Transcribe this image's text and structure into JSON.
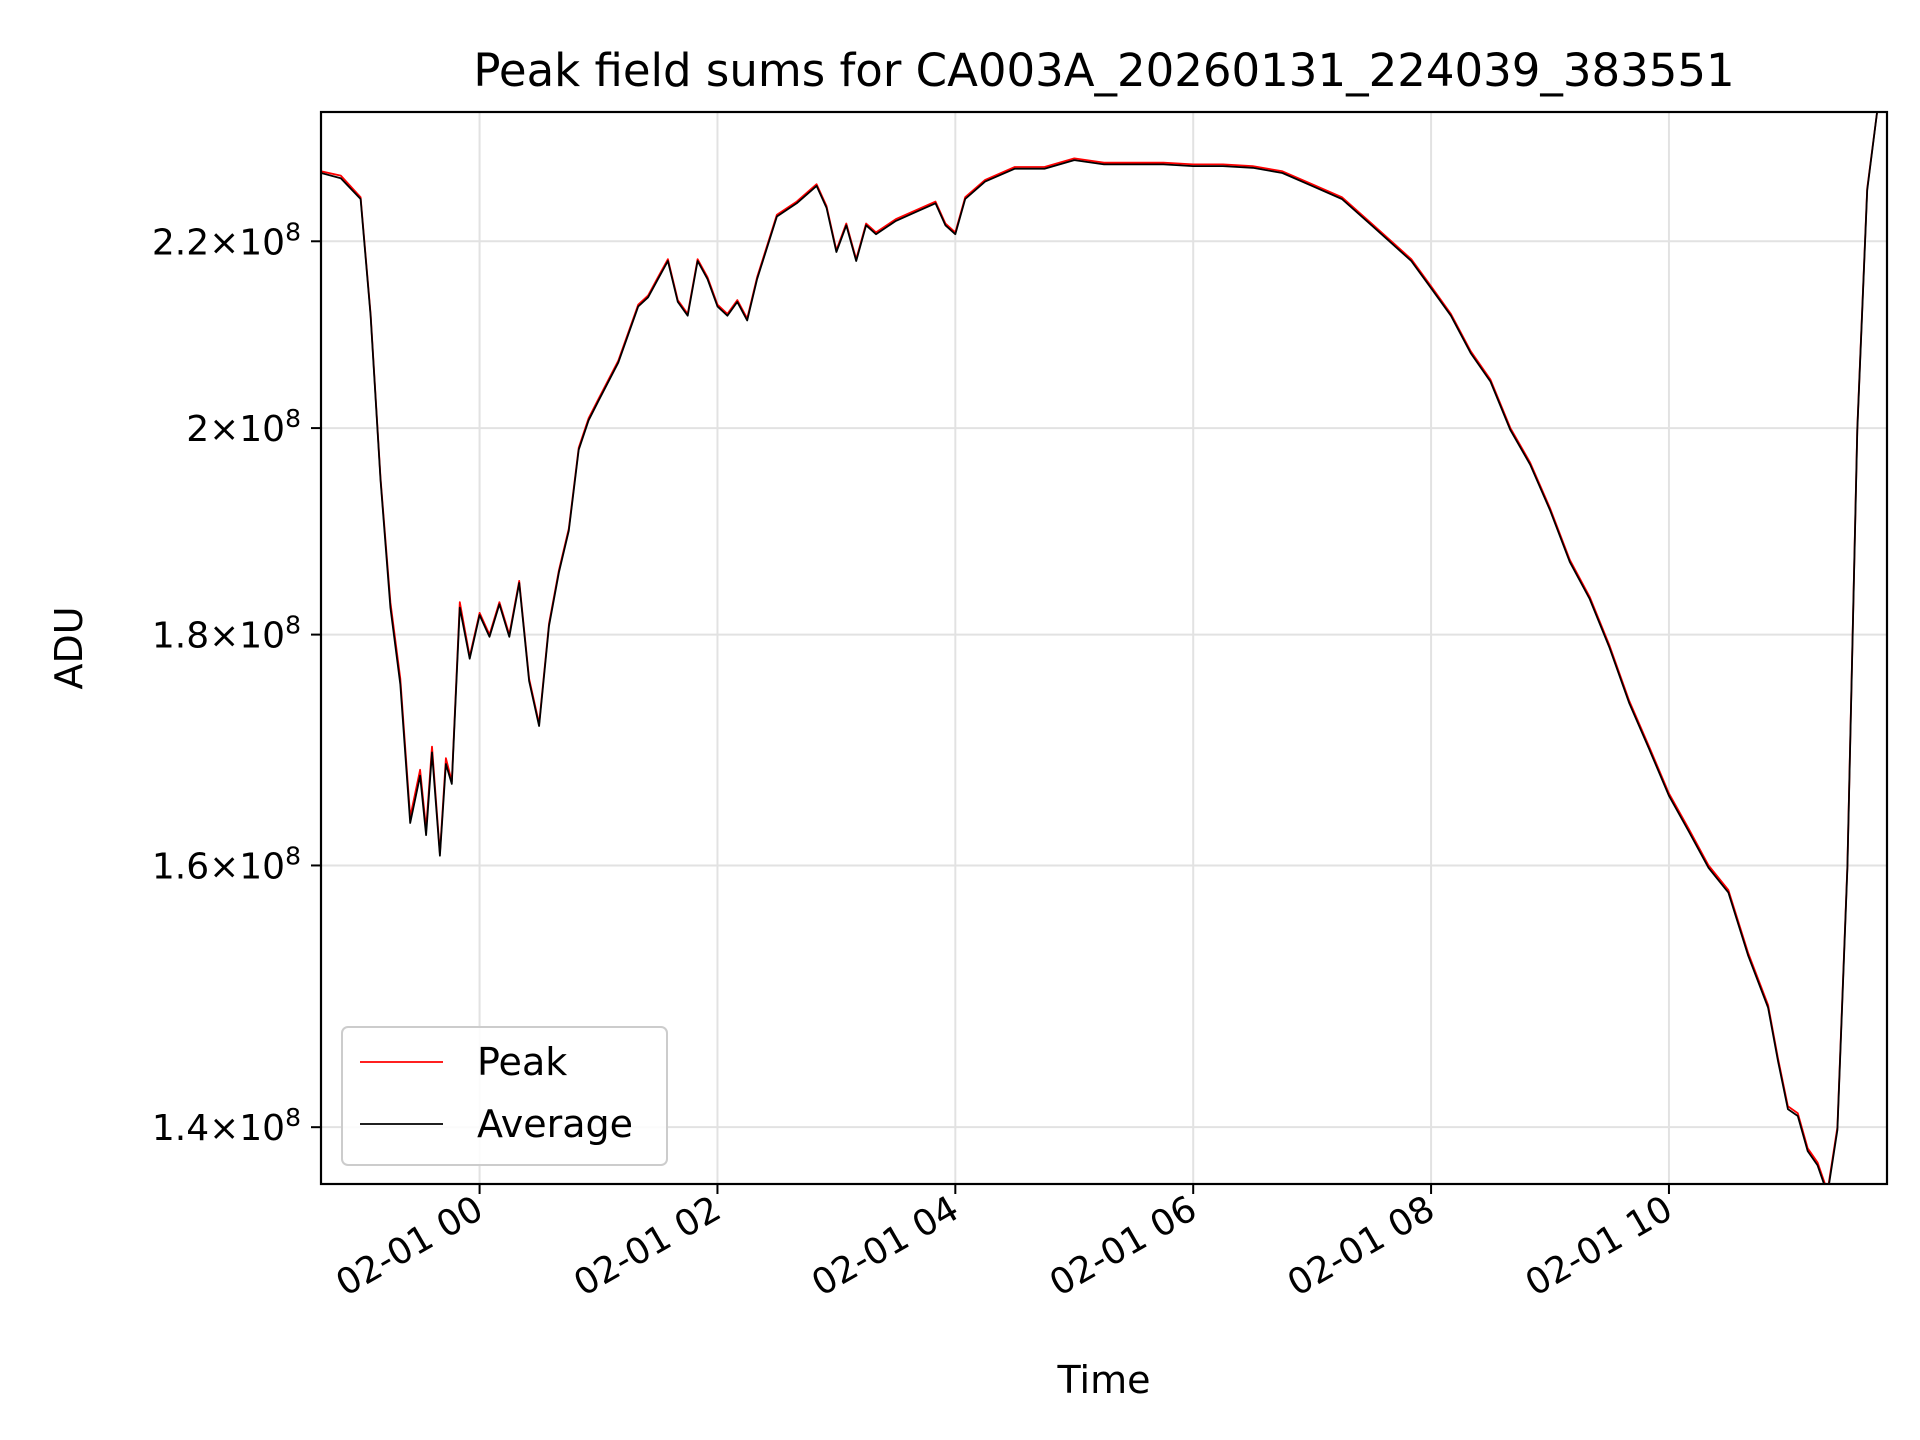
{
  "chart_data": {
    "type": "line",
    "title": "Peak field sums for CA003A_20260131_224039_383551",
    "xlabel": "Time",
    "ylabel": "ADU",
    "y_scale": "log",
    "ylim": [
      136000000,
      235000000
    ],
    "xlim": [
      "2026-01-31 22:40",
      "2026-02-01 11:50"
    ],
    "grid": true,
    "legend_position": "lower-left",
    "x_ticks": [
      {
        "t": "2026-02-01 00:00",
        "label": "02-01 00"
      },
      {
        "t": "2026-02-01 02:00",
        "label": "02-01 02"
      },
      {
        "t": "2026-02-01 04:00",
        "label": "02-01 04"
      },
      {
        "t": "2026-02-01 06:00",
        "label": "02-01 06"
      },
      {
        "t": "2026-02-01 08:00",
        "label": "02-01 08"
      },
      {
        "t": "2026-02-01 10:00",
        "label": "02-01 10"
      }
    ],
    "y_ticks": [
      {
        "value": 140000000,
        "mantissa": "1.4",
        "base": "10",
        "exp": "8"
      },
      {
        "value": 160000000,
        "mantissa": "1.6",
        "base": "10",
        "exp": "8"
      },
      {
        "value": 180000000,
        "mantissa": "1.8",
        "base": "10",
        "exp": "8"
      },
      {
        "value": 200000000,
        "mantissa": "2",
        "base": "10",
        "exp": "8"
      },
      {
        "value": 220000000,
        "mantissa": "2.2",
        "base": "10",
        "exp": "8"
      }
    ],
    "series": [
      {
        "name": "Peak",
        "color": "#ff0000",
        "x": [
          "2026-01-31 22:40",
          "2026-01-31 22:50",
          "2026-01-31 23:00",
          "2026-01-31 23:05",
          "2026-01-31 23:10",
          "2026-01-31 23:15",
          "2026-01-31 23:20",
          "2026-01-31 23:25",
          "2026-01-31 23:30",
          "2026-01-31 23:33",
          "2026-01-31 23:36",
          "2026-01-31 23:40",
          "2026-01-31 23:43",
          "2026-01-31 23:46",
          "2026-01-31 23:50",
          "2026-01-31 23:55",
          "2026-02-01 00:00",
          "2026-02-01 00:05",
          "2026-02-01 00:10",
          "2026-02-01 00:15",
          "2026-02-01 00:20",
          "2026-02-01 00:25",
          "2026-02-01 00:30",
          "2026-02-01 00:35",
          "2026-02-01 00:40",
          "2026-02-01 00:45",
          "2026-02-01 00:50",
          "2026-02-01 00:55",
          "2026-02-01 01:00",
          "2026-02-01 01:10",
          "2026-02-01 01:20",
          "2026-02-01 01:25",
          "2026-02-01 01:30",
          "2026-02-01 01:35",
          "2026-02-01 01:40",
          "2026-02-01 01:45",
          "2026-02-01 01:50",
          "2026-02-01 01:55",
          "2026-02-01 02:00",
          "2026-02-01 02:05",
          "2026-02-01 02:10",
          "2026-02-01 02:15",
          "2026-02-01 02:20",
          "2026-02-01 02:30",
          "2026-02-01 02:40",
          "2026-02-01 02:50",
          "2026-02-01 02:55",
          "2026-02-01 03:00",
          "2026-02-01 03:05",
          "2026-02-01 03:10",
          "2026-02-01 03:15",
          "2026-02-01 03:20",
          "2026-02-01 03:30",
          "2026-02-01 03:40",
          "2026-02-01 03:50",
          "2026-02-01 03:55",
          "2026-02-01 04:00",
          "2026-02-01 04:05",
          "2026-02-01 04:15",
          "2026-02-01 04:30",
          "2026-02-01 04:45",
          "2026-02-01 05:00",
          "2026-02-01 05:15",
          "2026-02-01 05:30",
          "2026-02-01 05:45",
          "2026-02-01 06:00",
          "2026-02-01 06:15",
          "2026-02-01 06:30",
          "2026-02-01 06:45",
          "2026-02-01 07:00",
          "2026-02-01 07:15",
          "2026-02-01 07:30",
          "2026-02-01 07:40",
          "2026-02-01 07:50",
          "2026-02-01 08:00",
          "2026-02-01 08:10",
          "2026-02-01 08:20",
          "2026-02-01 08:30",
          "2026-02-01 08:40",
          "2026-02-01 08:50",
          "2026-02-01 09:00",
          "2026-02-01 09:10",
          "2026-02-01 09:20",
          "2026-02-01 09:30",
          "2026-02-01 09:40",
          "2026-02-01 09:50",
          "2026-02-01 10:00",
          "2026-02-01 10:10",
          "2026-02-01 10:20",
          "2026-02-01 10:30",
          "2026-02-01 10:40",
          "2026-02-01 10:50",
          "2026-02-01 10:55",
          "2026-02-01 11:00",
          "2026-02-01 11:05",
          "2026-02-01 11:10",
          "2026-02-01 11:15",
          "2026-02-01 11:20",
          "2026-02-01 11:25",
          "2026-02-01 11:30",
          "2026-02-01 11:35",
          "2026-02-01 11:40",
          "2026-02-01 11:45",
          "2026-02-01 11:48"
        ],
        "y": [
          228000000,
          227500000,
          225000000,
          212000000,
          195000000,
          183000000,
          176000000,
          164000000,
          168000000,
          163000000,
          170000000,
          161000000,
          169000000,
          167000000,
          183000000,
          178000000,
          182000000,
          180000000,
          183000000,
          180000000,
          185000000,
          176000000,
          172000000,
          181000000,
          186000000,
          190000000,
          198000000,
          201000000,
          203000000,
          207000000,
          213000000,
          214000000,
          216000000,
          218000000,
          213500000,
          212000000,
          218000000,
          216000000,
          213000000,
          212000000,
          213500000,
          211500000,
          216000000,
          223000000,
          224500000,
          226500000,
          224000000,
          219000000,
          222000000,
          218000000,
          222000000,
          221000000,
          222500000,
          223500000,
          224500000,
          222000000,
          221000000,
          225000000,
          227000000,
          228500000,
          228500000,
          229500000,
          229000000,
          229000000,
          229000000,
          228800000,
          228800000,
          228600000,
          228000000,
          226500000,
          225000000,
          222000000,
          220000000,
          218000000,
          215000000,
          212000000,
          208000000,
          205000000,
          200000000,
          196500000,
          192000000,
          187000000,
          183500000,
          179000000,
          174000000,
          170000000,
          166000000,
          163000000,
          160000000,
          158000000,
          153000000,
          149000000,
          145000000,
          141500000,
          141000000,
          138500000,
          137500000,
          135500000,
          140000000,
          160000000,
          200000000,
          226000000,
          235000000,
          235000000
        ]
      },
      {
        "name": "Average",
        "color": "#000000",
        "x": [
          "2026-01-31 22:40",
          "2026-01-31 22:50",
          "2026-01-31 23:00",
          "2026-01-31 23:05",
          "2026-01-31 23:10",
          "2026-01-31 23:15",
          "2026-01-31 23:20",
          "2026-01-31 23:25",
          "2026-01-31 23:30",
          "2026-01-31 23:33",
          "2026-01-31 23:36",
          "2026-01-31 23:40",
          "2026-01-31 23:43",
          "2026-01-31 23:46",
          "2026-01-31 23:50",
          "2026-01-31 23:55",
          "2026-02-01 00:00",
          "2026-02-01 00:05",
          "2026-02-01 00:10",
          "2026-02-01 00:15",
          "2026-02-01 00:20",
          "2026-02-01 00:25",
          "2026-02-01 00:30",
          "2026-02-01 00:35",
          "2026-02-01 00:40",
          "2026-02-01 00:45",
          "2026-02-01 00:50",
          "2026-02-01 00:55",
          "2026-02-01 01:00",
          "2026-02-01 01:10",
          "2026-02-01 01:20",
          "2026-02-01 01:25",
          "2026-02-01 01:30",
          "2026-02-01 01:35",
          "2026-02-01 01:40",
          "2026-02-01 01:45",
          "2026-02-01 01:50",
          "2026-02-01 01:55",
          "2026-02-01 02:00",
          "2026-02-01 02:05",
          "2026-02-01 02:10",
          "2026-02-01 02:15",
          "2026-02-01 02:20",
          "2026-02-01 02:30",
          "2026-02-01 02:40",
          "2026-02-01 02:50",
          "2026-02-01 02:55",
          "2026-02-01 03:00",
          "2026-02-01 03:05",
          "2026-02-01 03:10",
          "2026-02-01 03:15",
          "2026-02-01 03:20",
          "2026-02-01 03:30",
          "2026-02-01 03:40",
          "2026-02-01 03:50",
          "2026-02-01 03:55",
          "2026-02-01 04:00",
          "2026-02-01 04:05",
          "2026-02-01 04:15",
          "2026-02-01 04:30",
          "2026-02-01 04:45",
          "2026-02-01 05:00",
          "2026-02-01 05:15",
          "2026-02-01 05:30",
          "2026-02-01 05:45",
          "2026-02-01 06:00",
          "2026-02-01 06:15",
          "2026-02-01 06:30",
          "2026-02-01 06:45",
          "2026-02-01 07:00",
          "2026-02-01 07:15",
          "2026-02-01 07:30",
          "2026-02-01 07:40",
          "2026-02-01 07:50",
          "2026-02-01 08:00",
          "2026-02-01 08:10",
          "2026-02-01 08:20",
          "2026-02-01 08:30",
          "2026-02-01 08:40",
          "2026-02-01 08:50",
          "2026-02-01 09:00",
          "2026-02-01 09:10",
          "2026-02-01 09:20",
          "2026-02-01 09:30",
          "2026-02-01 09:40",
          "2026-02-01 09:50",
          "2026-02-01 10:00",
          "2026-02-01 10:10",
          "2026-02-01 10:20",
          "2026-02-01 10:30",
          "2026-02-01 10:40",
          "2026-02-01 10:50",
          "2026-02-01 10:55",
          "2026-02-01 11:00",
          "2026-02-01 11:05",
          "2026-02-01 11:10",
          "2026-02-01 11:15",
          "2026-02-01 11:20",
          "2026-02-01 11:25",
          "2026-02-01 11:30",
          "2026-02-01 11:35",
          "2026-02-01 11:40",
          "2026-02-01 11:45",
          "2026-02-01 11:48"
        ],
        "y": [
          227800000,
          227200000,
          224800000,
          211800000,
          194800000,
          182500000,
          175500000,
          163500000,
          167500000,
          162500000,
          169500000,
          160800000,
          168500000,
          166800000,
          182500000,
          177800000,
          181800000,
          179800000,
          182800000,
          179800000,
          184800000,
          175800000,
          171800000,
          180800000,
          185800000,
          189800000,
          197800000,
          200800000,
          202800000,
          206800000,
          212800000,
          213800000,
          215800000,
          217800000,
          213300000,
          211800000,
          217800000,
          215800000,
          212800000,
          211800000,
          213300000,
          211300000,
          215800000,
          222800000,
          224300000,
          226300000,
          223800000,
          218800000,
          221800000,
          217800000,
          221800000,
          220800000,
          222300000,
          223300000,
          224300000,
          221800000,
          220800000,
          224800000,
          226800000,
          228300000,
          228300000,
          229300000,
          228800000,
          228800000,
          228800000,
          228600000,
          228600000,
          228400000,
          227800000,
          226300000,
          224800000,
          221800000,
          219800000,
          217800000,
          214800000,
          211800000,
          207800000,
          204800000,
          199800000,
          196300000,
          191800000,
          186800000,
          183300000,
          178800000,
          173800000,
          169800000,
          165800000,
          162800000,
          159800000,
          157800000,
          152800000,
          148800000,
          144800000,
          141300000,
          140800000,
          138300000,
          137300000,
          135300000,
          139800000,
          159800000,
          199800000,
          225800000,
          235000000,
          235000000
        ]
      }
    ]
  }
}
